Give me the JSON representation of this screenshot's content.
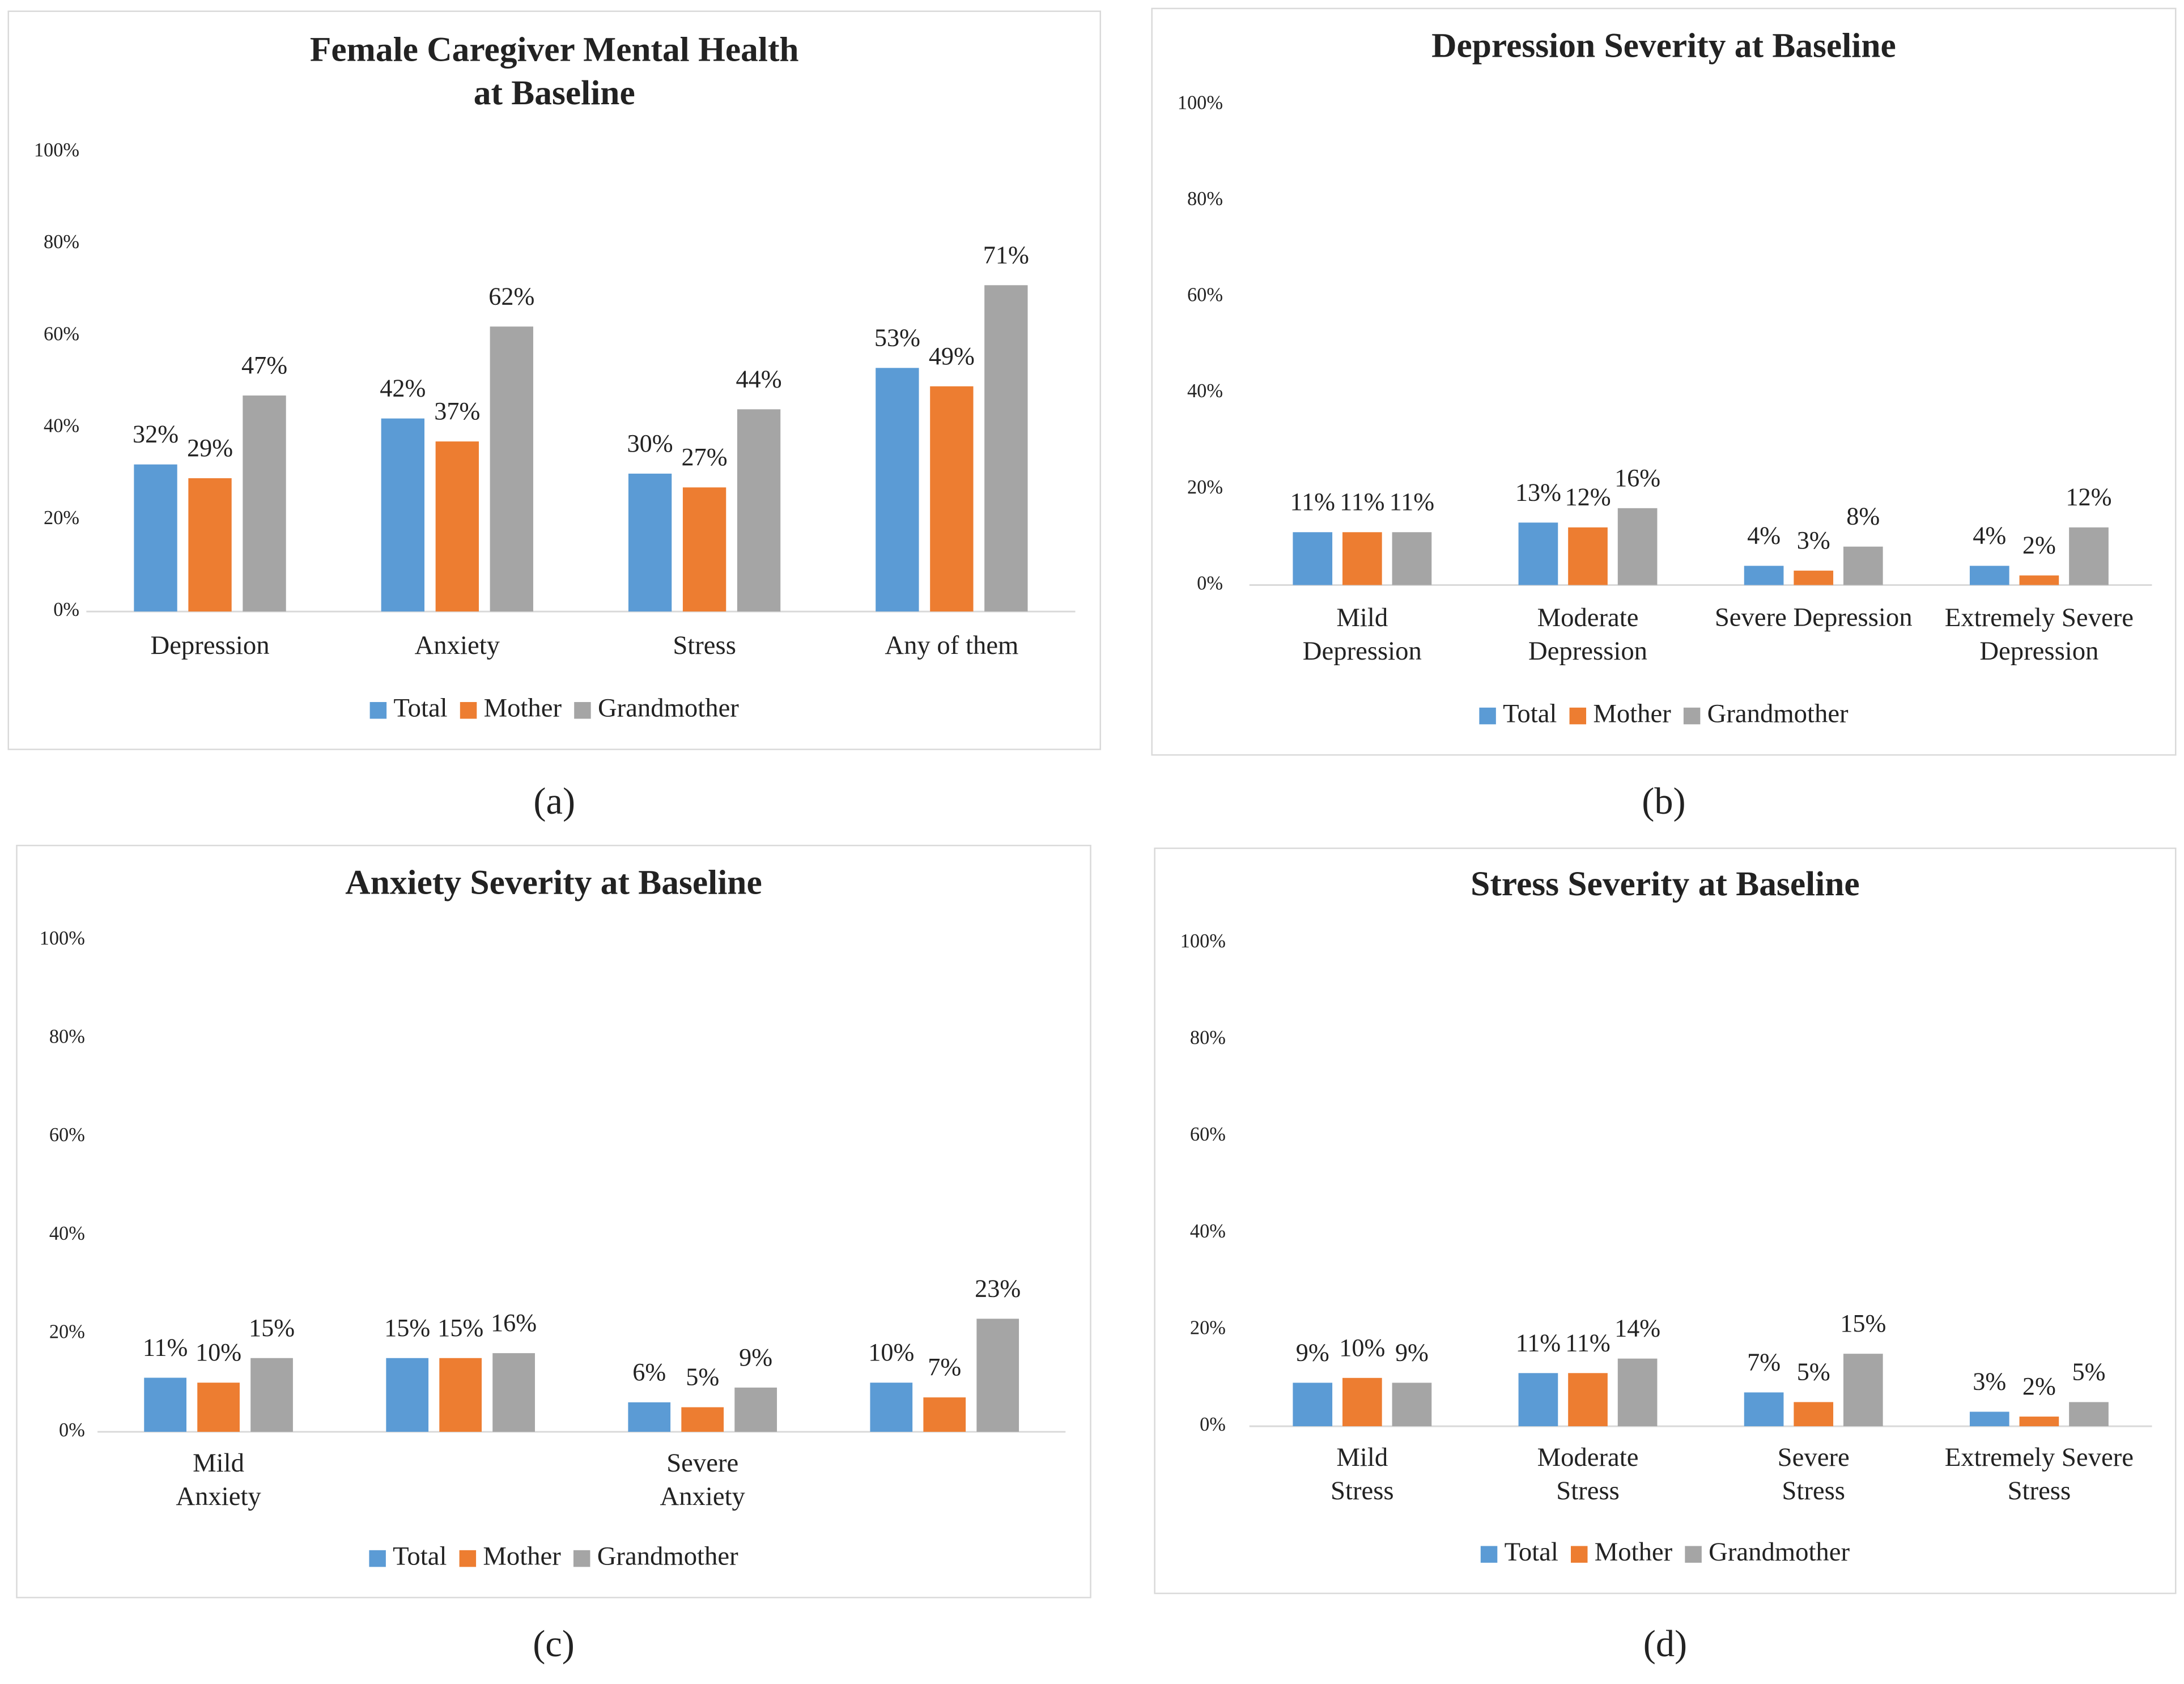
{
  "chart_data": [
    {
      "type": "bar",
      "label": "(a)",
      "title": "Female Caregiver Mental Health\nat Baseline",
      "categories": [
        "Depression",
        "Anxiety",
        "Stress",
        "Any of them"
      ],
      "series": [
        {
          "name": "Total",
          "color": "#5b9bd5",
          "values": [
            32,
            42,
            30,
            53
          ],
          "value_labels": [
            "32%",
            "42%",
            "30%",
            "53%"
          ]
        },
        {
          "name": "Mother",
          "color": "#ed7d31",
          "values": [
            29,
            37,
            27,
            49
          ],
          "value_labels": [
            "29%",
            "37%",
            "27%",
            "49%"
          ]
        },
        {
          "name": "Grandmother",
          "color": "#a5a5a5",
          "values": [
            47,
            62,
            44,
            71
          ],
          "value_labels": [
            "47%",
            "62%",
            "44%",
            "71%"
          ]
        }
      ],
      "ylim": [
        0,
        100
      ],
      "yticks": [
        {
          "value": 0,
          "label": "0%"
        },
        {
          "value": 20,
          "label": "20%"
        },
        {
          "value": 40,
          "label": "40%"
        },
        {
          "value": 60,
          "label": "60%"
        },
        {
          "value": 80,
          "label": "80%"
        },
        {
          "value": 100,
          "label": "100%"
        }
      ],
      "grid": false,
      "legend": "bottom"
    },
    {
      "type": "bar",
      "label": "(b)",
      "title": "Depression Severity at Baseline",
      "categories": [
        "Mild\nDepression",
        "Moderate\nDepression",
        "Severe Depression",
        "Extremely Severe\nDepression"
      ],
      "series": [
        {
          "name": "Total",
          "color": "#5b9bd5",
          "values": [
            11,
            13,
            4,
            4
          ],
          "value_labels": [
            "11%",
            "13%",
            "4%",
            "4%"
          ]
        },
        {
          "name": "Mother",
          "color": "#ed7d31",
          "values": [
            11,
            12,
            3,
            2
          ],
          "value_labels": [
            "11%",
            "12%",
            "3%",
            "2%"
          ]
        },
        {
          "name": "Grandmother",
          "color": "#a5a5a5",
          "values": [
            11,
            16,
            8,
            12
          ],
          "value_labels": [
            "11%",
            "16%",
            "8%",
            "12%"
          ]
        }
      ],
      "ylim": [
        0,
        100
      ],
      "yticks": [
        {
          "value": 0,
          "label": "0%"
        },
        {
          "value": 20,
          "label": "20%"
        },
        {
          "value": 40,
          "label": "40%"
        },
        {
          "value": 60,
          "label": "60%"
        },
        {
          "value": 80,
          "label": "80%"
        },
        {
          "value": 100,
          "label": "100%"
        }
      ],
      "grid": false,
      "legend": "bottom"
    },
    {
      "type": "bar",
      "label": "(c)",
      "title": "Anxiety Severity at Baseline",
      "categories": [
        "Mild\nAnxiety",
        null,
        "Severe\nAnxiety",
        null
      ],
      "series": [
        {
          "name": "Total",
          "color": "#5b9bd5",
          "values": [
            11,
            15,
            6,
            10
          ],
          "value_labels": [
            "11%",
            "15%",
            "6%",
            "10%"
          ]
        },
        {
          "name": "Mother",
          "color": "#ed7d31",
          "values": [
            10,
            15,
            5,
            7
          ],
          "value_labels": [
            "10%",
            "15%",
            "5%",
            "7%"
          ]
        },
        {
          "name": "Grandmother",
          "color": "#a5a5a5",
          "values": [
            15,
            16,
            9,
            23
          ],
          "value_labels": [
            "15%",
            "16%",
            "9%",
            "23%"
          ]
        }
      ],
      "ylim": [
        0,
        100
      ],
      "yticks": [
        {
          "value": 0,
          "label": "0%"
        },
        {
          "value": 20,
          "label": "20%"
        },
        {
          "value": 40,
          "label": "40%"
        },
        {
          "value": 60,
          "label": "60%"
        },
        {
          "value": 80,
          "label": "80%"
        },
        {
          "value": 100,
          "label": "100%"
        }
      ],
      "grid": false,
      "legend": "bottom"
    },
    {
      "type": "bar",
      "label": "(d)",
      "title": "Stress Severity at Baseline",
      "categories": [
        "Mild\nStress",
        "Moderate\nStress",
        "Severe\nStress",
        "Extremely Severe\nStress"
      ],
      "series": [
        {
          "name": "Total",
          "color": "#5b9bd5",
          "values": [
            9,
            11,
            7,
            3
          ],
          "value_labels": [
            "9%",
            "11%",
            "7%",
            "3%"
          ]
        },
        {
          "name": "Mother",
          "color": "#ed7d31",
          "values": [
            10,
            11,
            5,
            2
          ],
          "value_labels": [
            "10%",
            "11%",
            "5%",
            "2%"
          ]
        },
        {
          "name": "Grandmother",
          "color": "#a5a5a5",
          "values": [
            9,
            14,
            15,
            5
          ],
          "value_labels": [
            "9%",
            "14%",
            "15%",
            "5%"
          ]
        }
      ],
      "ylim": [
        0,
        100
      ],
      "yticks": [
        {
          "value": 0,
          "label": "0%"
        },
        {
          "value": 20,
          "label": "20%"
        },
        {
          "value": 40,
          "label": "40%"
        },
        {
          "value": 60,
          "label": "60%"
        },
        {
          "value": 80,
          "label": "80%"
        },
        {
          "value": 100,
          "label": "100%"
        }
      ],
      "grid": false,
      "legend": "bottom"
    }
  ]
}
